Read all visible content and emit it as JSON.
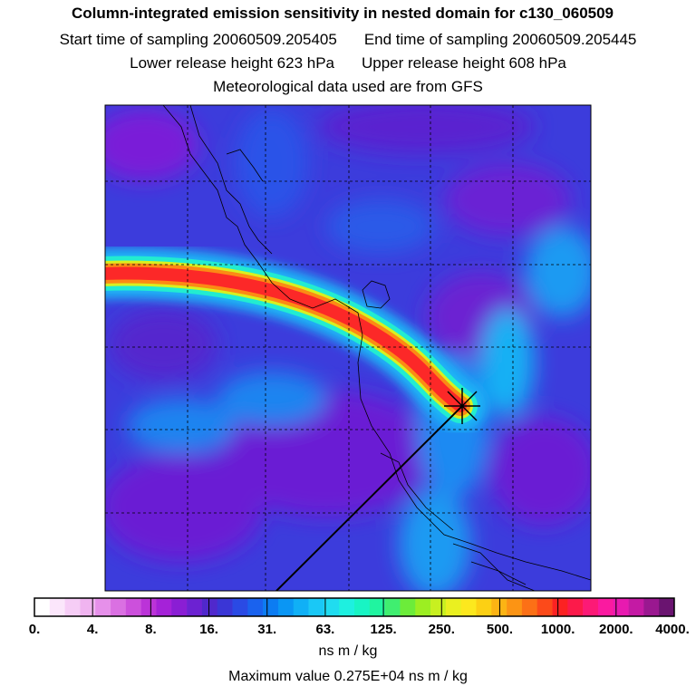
{
  "header": {
    "title": "Column-integrated emission sensitivity in nested domain for c130_060509",
    "start_time": "Start time of sampling 20060509.205405",
    "end_time": "End time of sampling 20060509.205445",
    "lower_height": "Lower release height  623 hPa",
    "upper_height": "Upper release height  608 hPa",
    "met_source": "Meteorological data used are from GFS"
  },
  "colorbar": {
    "tick_labels": [
      "0.",
      "4.",
      "8.",
      "16.",
      "31.",
      "63.",
      "125.",
      "250.",
      "500.",
      "1000.",
      "2000.",
      "4000."
    ],
    "units": "ns m / kg",
    "colors": [
      "#ffffff",
      "#fbe6fb",
      "#f6cdf6",
      "#f0b4f0",
      "#e690ea",
      "#da70e2",
      "#cc50dc",
      "#bb33d8",
      "#a522d8",
      "#8a1ed4",
      "#6c22d2",
      "#5028cc",
      "#3a36d6",
      "#2a4ae4",
      "#1a62ee",
      "#0c7cf2",
      "#0a96f4",
      "#10b0f6",
      "#1ac8f6",
      "#20dcf0",
      "#1ef0e0",
      "#18f4c4",
      "#20f4a0",
      "#40ee70",
      "#6cec3a",
      "#9cee22",
      "#c8f020",
      "#eaf020",
      "#fce81e",
      "#fcd014",
      "#fcb414",
      "#fc9414",
      "#fc7016",
      "#fc4a1a",
      "#fc2222",
      "#fc1a4a",
      "#fc1a76",
      "#fa1aa0",
      "#e81ab0",
      "#c41aa4",
      "#9a1890",
      "#6a1470"
    ]
  },
  "max_value": "Maximum value  0.275E+04 ns m / kg"
}
